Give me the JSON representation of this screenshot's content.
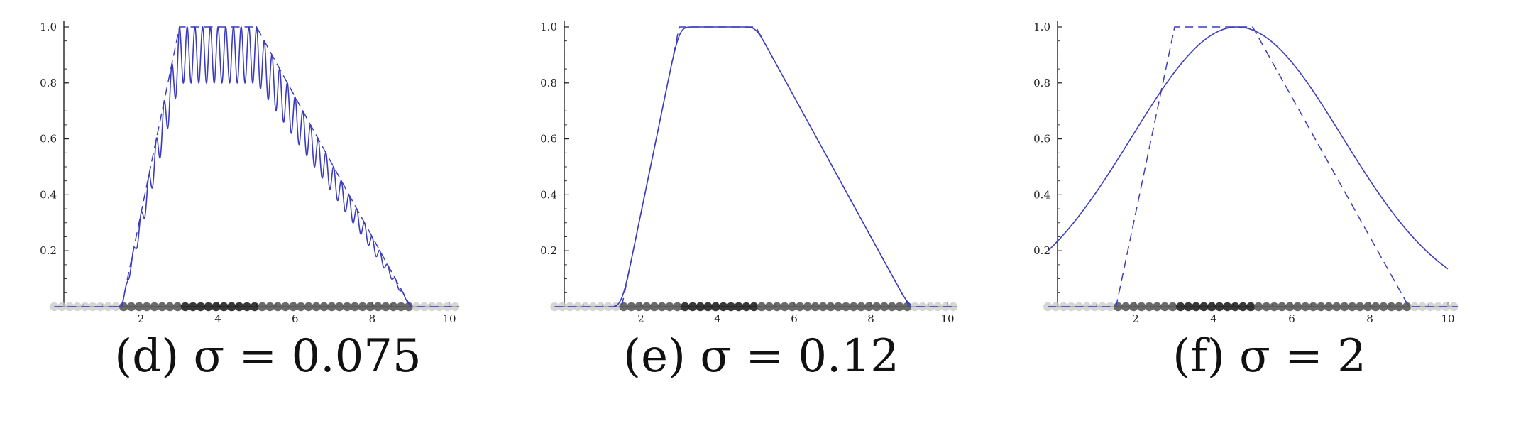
{
  "chart_data": [
    {
      "type": "line",
      "caption": "(d) σ = 0.075",
      "sigma": 0.075,
      "xlim": [
        0,
        10
      ],
      "ylim": [
        0,
        1
      ],
      "x_ticks": [
        2,
        4,
        6,
        8,
        10
      ],
      "y_ticks": [
        0.2,
        0.4,
        0.6,
        0.8,
        1.0
      ],
      "x_tick_labels": [
        "2",
        "4",
        "6",
        "8",
        "10"
      ],
      "y_tick_labels": [
        "0.2",
        "0.4",
        "0.6",
        "0.8",
        "1.0"
      ],
      "target": {
        "style": "dashed",
        "x": [
          -0.25,
          1.5,
          3,
          5,
          9,
          10.25
        ],
        "y": [
          0,
          0,
          1,
          1,
          0,
          0
        ]
      },
      "approximation": {
        "style": "solid",
        "oscillation": "strong",
        "trough_ratio": 0.8
      },
      "points": {
        "x_start": -0.25,
        "x_end": 10.25,
        "step": 0.2,
        "y": 0
      }
    },
    {
      "type": "line",
      "caption": "(e) σ = 0.12",
      "sigma": 0.12,
      "xlim": [
        0,
        10
      ],
      "ylim": [
        0,
        1
      ],
      "x_ticks": [
        2,
        4,
        6,
        8,
        10
      ],
      "y_ticks": [
        0.2,
        0.4,
        0.6,
        0.8,
        1.0
      ],
      "x_tick_labels": [
        "2",
        "4",
        "6",
        "8",
        "10"
      ],
      "y_tick_labels": [
        "0.2",
        "0.4",
        "0.6",
        "0.8",
        "1.0"
      ],
      "target": {
        "style": "dashed",
        "x": [
          -0.25,
          1.5,
          3,
          5,
          9,
          10.25
        ],
        "y": [
          0,
          0,
          1,
          1,
          0,
          0
        ]
      },
      "approximation": {
        "style": "solid",
        "oscillation": "none",
        "smoothing": 0.12
      },
      "points": {
        "x_start": -0.25,
        "x_end": 10.25,
        "step": 0.2,
        "y": 0
      }
    },
    {
      "type": "line",
      "caption": "(f) σ = 2",
      "sigma": 2,
      "xlim": [
        0,
        10
      ],
      "ylim": [
        0,
        1
      ],
      "x_ticks": [
        2,
        4,
        6,
        8,
        10
      ],
      "y_ticks": [
        0.2,
        0.4,
        0.6,
        0.8,
        1.0
      ],
      "x_tick_labels": [
        "2",
        "4",
        "6",
        "8",
        "10"
      ],
      "y_tick_labels": [
        "0.2",
        "0.4",
        "0.6",
        "0.8",
        "1.0"
      ],
      "target": {
        "style": "dashed",
        "x": [
          -0.25,
          1.5,
          3,
          5,
          9,
          10.25
        ],
        "y": [
          0,
          0,
          1,
          1,
          0,
          0
        ]
      },
      "approximation": {
        "style": "solid",
        "shape": "gaussian",
        "peak_x": 4.6,
        "peak_y": 1.0,
        "spread": 2.7
      },
      "points": {
        "x_start": -0.25,
        "x_end": 10.25,
        "step": 0.2,
        "y": 0
      }
    }
  ],
  "colors": {
    "curve": "#3c3cbe",
    "axis": "#222222",
    "point_dark": "#222222",
    "point_light": "#c8c8c8"
  }
}
